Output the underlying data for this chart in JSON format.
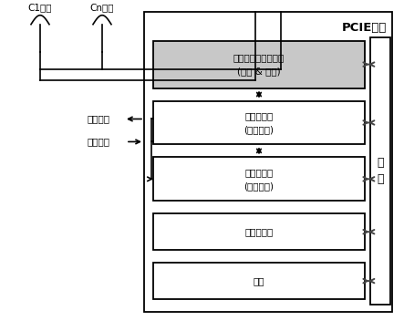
{
  "title": "PCIE平台",
  "bg_color": "#ffffff",
  "border_color": "#000000",
  "box_fill_rf": "#c8c8c8",
  "box_fill_white": "#ffffff",
  "box_border": "#000000",
  "backplane_label": "背\n板",
  "antenna_c1": "C1天线",
  "antenna_cn": "Cn天线",
  "clock_out": "时钟输出",
  "clock_in": "时钟输入",
  "block1_line1": "频综及射频信道处理",
  "block1_line2": "(发射 & 接收)",
  "block2_line1": "信号处理板",
  "block2_line2": "(调制单元)",
  "block3_line1": "信号处理板",
  "block3_line2": "(解调单元)",
  "block4": "单板计算机",
  "block5": "电源"
}
